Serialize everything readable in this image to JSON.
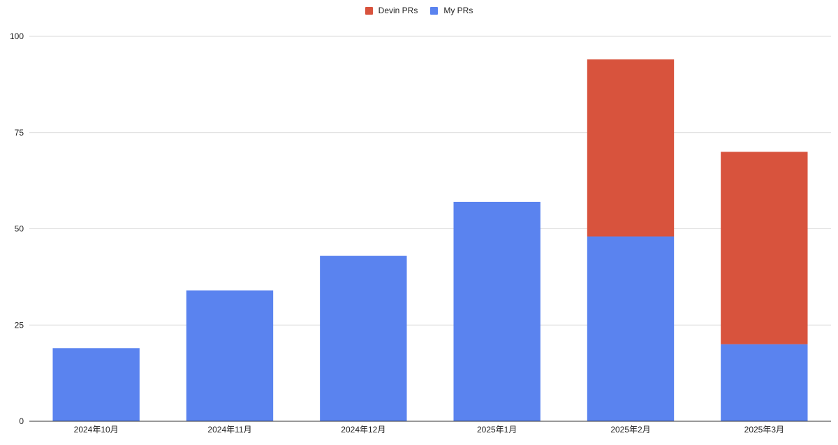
{
  "chart_data": {
    "type": "bar",
    "stacked": true,
    "categories": [
      "2024年10月",
      "2024年11月",
      "2024年12月",
      "2025年1月",
      "2025年2月",
      "2025年3月"
    ],
    "series": [
      {
        "name": "My PRs",
        "values": [
          19,
          34,
          43,
          57,
          48,
          20
        ],
        "color": "#5a83ef"
      },
      {
        "name": "Devin PRs",
        "values": [
          0,
          0,
          0,
          0,
          46,
          50
        ],
        "color": "#d8533d"
      }
    ],
    "legend_order": [
      "Devin PRs",
      "My PRs"
    ],
    "legend_position": "top-center",
    "ylim": [
      0,
      100
    ],
    "yticks": [
      0,
      25,
      50,
      75,
      100
    ],
    "ytick_labels": [
      "0",
      "25",
      "50",
      "75",
      "100"
    ],
    "grid": true,
    "title": "",
    "xlabel": "",
    "ylabel": ""
  },
  "colors": {
    "grid": "#d9d9d9",
    "axis": "#333333",
    "text": "#222222"
  }
}
